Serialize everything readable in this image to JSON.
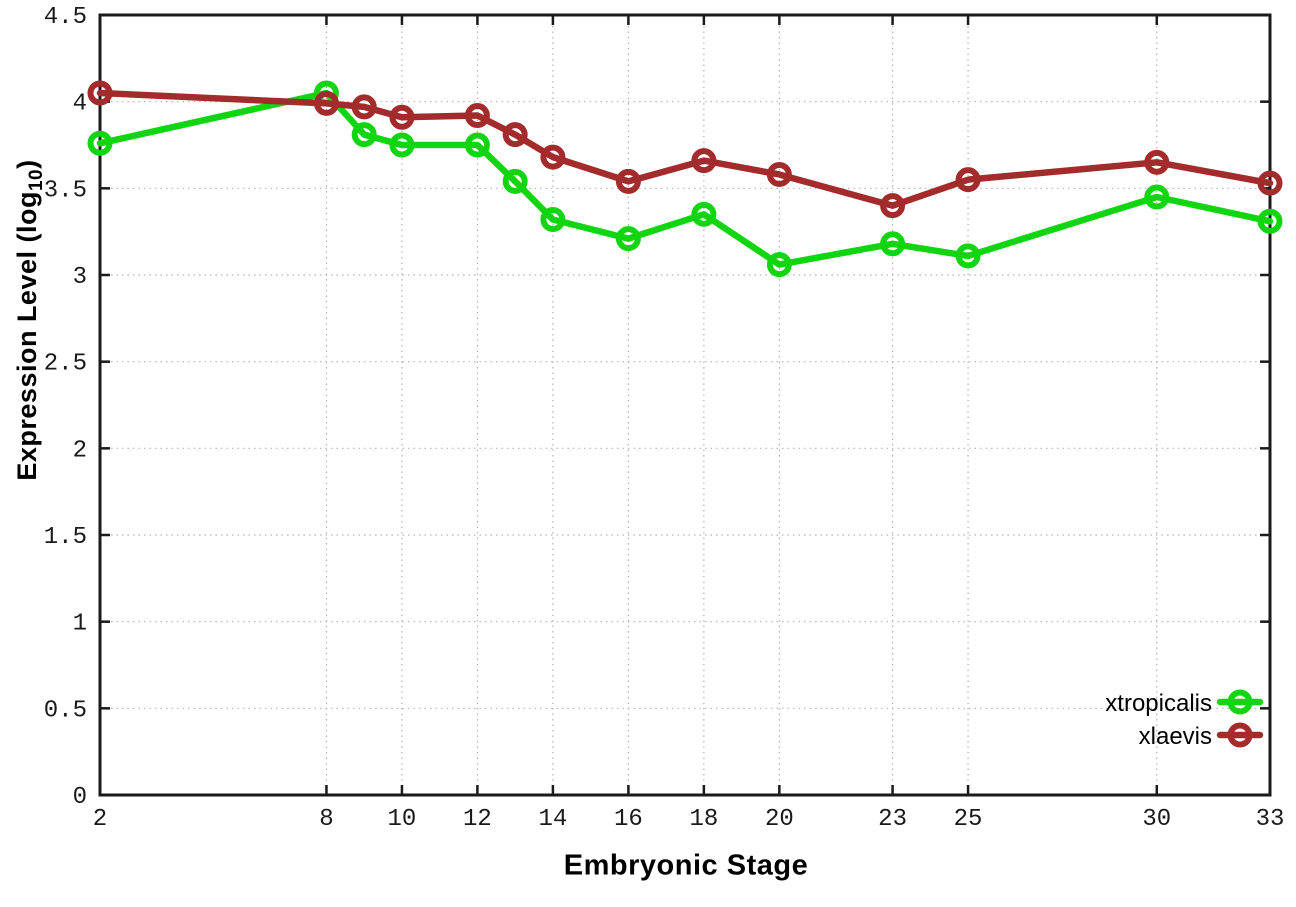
{
  "chart_data": {
    "type": "line",
    "title": "",
    "xlabel": "Embryonic Stage",
    "ylabel": "Expression Level (log10)",
    "ylabel_prefix": "Expression Level (log",
    "ylabel_sub": "10",
    "ylabel_suffix": ")",
    "xlim": [
      2,
      33
    ],
    "ylim": [
      0,
      4.5
    ],
    "grid": true,
    "legend_position": "bottom-right",
    "x_ticks": [
      2,
      8,
      10,
      12,
      14,
      16,
      18,
      20,
      23,
      25,
      30,
      33
    ],
    "x_tick_labels": [
      "2",
      "8",
      "10",
      "12",
      "14",
      "16",
      "18",
      "20",
      "23",
      "25",
      "30",
      "33"
    ],
    "y_ticks": [
      0,
      0.5,
      1,
      1.5,
      2,
      2.5,
      3,
      3.5,
      4,
      4.5
    ],
    "y_tick_labels": [
      "0",
      "0.5",
      "1",
      "1.5",
      "2",
      "2.5",
      "3",
      "3.5",
      "4",
      "4.5"
    ],
    "x": [
      2,
      8,
      9,
      10,
      12,
      13,
      14,
      16,
      18,
      20,
      23,
      25,
      30,
      33
    ],
    "series": [
      {
        "name": "xtropicalis",
        "color": "#12d512",
        "values": [
          3.76,
          4.05,
          3.81,
          3.75,
          3.75,
          3.54,
          3.32,
          3.21,
          3.35,
          3.06,
          3.18,
          3.11,
          3.45,
          3.31
        ]
      },
      {
        "name": "xlaevis",
        "color": "#a32b2b",
        "values": [
          4.05,
          3.99,
          3.97,
          3.91,
          3.92,
          3.81,
          3.68,
          3.54,
          3.66,
          3.58,
          3.4,
          3.55,
          3.65,
          3.53
        ]
      }
    ],
    "colors": {
      "axis": "#1a1a1a",
      "grid": "#b3b3b3",
      "tick_text": "#1a1a1a",
      "background": "#ffffff"
    }
  }
}
